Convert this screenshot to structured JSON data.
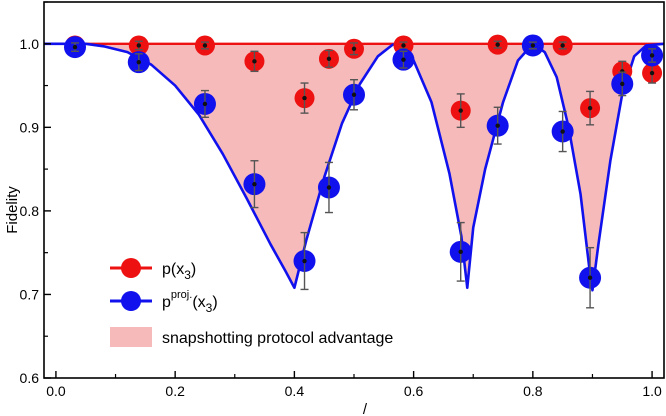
{
  "chart_data": {
    "type": "scatter",
    "ylabel": "Fidelity",
    "xlabel": "/",
    "xlim": [
      -0.02,
      1.02
    ],
    "ylim": [
      0.6,
      1.05
    ],
    "x_ticks": [
      "0.0",
      "0.2",
      "0.4",
      "0.6",
      "0.8",
      "1.0"
    ],
    "y_ticks": [
      "0.6",
      "0.7",
      "0.8",
      "0.9",
      "1.0"
    ],
    "grid": false,
    "legend_position": "bottom-left",
    "legend": {
      "red_base": "p(x",
      "red_sub": "3",
      "red_close": ")",
      "blue_base": "p",
      "blue_sup": "proj.",
      "blue_open": "(x",
      "blue_sub": "3",
      "blue_close": ")",
      "shade": "snapshotting protocol advantage"
    },
    "colors": {
      "red": "#ee1111",
      "blue": "#1111ee",
      "shade": "#f7baba",
      "error_bar": "#555555"
    },
    "series": [
      {
        "key": "red",
        "points": [
          {
            "x": 0.032,
            "y": 0.998,
            "err": 0.005
          },
          {
            "x": 0.139,
            "y": 0.998,
            "err": 0.005
          },
          {
            "x": 0.25,
            "y": 0.998,
            "err": 0.004
          },
          {
            "x": 0.333,
            "y": 0.979,
            "err": 0.012
          },
          {
            "x": 0.417,
            "y": 0.935,
            "err": 0.018
          },
          {
            "x": 0.458,
            "y": 0.982,
            "err": 0.01
          },
          {
            "x": 0.5,
            "y": 0.994,
            "err": 0.007
          },
          {
            "x": 0.583,
            "y": 0.998,
            "err": 0.004
          },
          {
            "x": 0.679,
            "y": 0.92,
            "err": 0.02
          },
          {
            "x": 0.741,
            "y": 0.999,
            "err": 0.004
          },
          {
            "x": 0.8,
            "y": 0.998,
            "err": 0.004
          },
          {
            "x": 0.85,
            "y": 0.998,
            "err": 0.004
          },
          {
            "x": 0.896,
            "y": 0.923,
            "err": 0.02
          },
          {
            "x": 0.95,
            "y": 0.967,
            "err": 0.012
          },
          {
            "x": 1.0,
            "y": 0.965,
            "err": 0.012
          }
        ]
      },
      {
        "key": "blue",
        "points": [
          {
            "x": 0.032,
            "y": 0.996,
            "err": 0.005
          },
          {
            "x": 0.139,
            "y": 0.978,
            "err": 0.01
          },
          {
            "x": 0.25,
            "y": 0.928,
            "err": 0.016
          },
          {
            "x": 0.333,
            "y": 0.832,
            "err": 0.028
          },
          {
            "x": 0.417,
            "y": 0.74,
            "err": 0.034
          },
          {
            "x": 0.458,
            "y": 0.828,
            "err": 0.03
          },
          {
            "x": 0.5,
            "y": 0.939,
            "err": 0.018
          },
          {
            "x": 0.583,
            "y": 0.981,
            "err": 0.01
          },
          {
            "x": 0.679,
            "y": 0.751,
            "err": 0.035
          },
          {
            "x": 0.741,
            "y": 0.902,
            "err": 0.022
          },
          {
            "x": 0.8,
            "y": 0.998,
            "err": 0.004
          },
          {
            "x": 0.85,
            "y": 0.895,
            "err": 0.024
          },
          {
            "x": 0.896,
            "y": 0.72,
            "err": 0.036
          },
          {
            "x": 0.95,
            "y": 0.952,
            "err": 0.014
          },
          {
            "x": 1.0,
            "y": 0.986,
            "err": 0.008
          }
        ]
      }
    ],
    "red_curve": [
      [
        -0.02,
        1.0
      ],
      [
        1.02,
        1.0
      ]
    ],
    "blue_curve": [
      [
        -0.02,
        1.0
      ],
      [
        0.05,
        1.0
      ],
      [
        0.08,
        0.997
      ],
      [
        0.12,
        0.99
      ],
      [
        0.16,
        0.975
      ],
      [
        0.2,
        0.95
      ],
      [
        0.24,
        0.915
      ],
      [
        0.28,
        0.868
      ],
      [
        0.32,
        0.815
      ],
      [
        0.36,
        0.76
      ],
      [
        0.385,
        0.728
      ],
      [
        0.4,
        0.708
      ],
      [
        0.42,
        0.765
      ],
      [
        0.45,
        0.84
      ],
      [
        0.48,
        0.905
      ],
      [
        0.51,
        0.952
      ],
      [
        0.54,
        0.985
      ],
      [
        0.565,
        0.999
      ],
      [
        0.58,
        1.0
      ],
      [
        0.6,
        0.98
      ],
      [
        0.63,
        0.93
      ],
      [
        0.66,
        0.845
      ],
      [
        0.68,
        0.77
      ],
      [
        0.69,
        0.708
      ],
      [
        0.7,
        0.78
      ],
      [
        0.72,
        0.85
      ],
      [
        0.75,
        0.93
      ],
      [
        0.775,
        0.98
      ],
      [
        0.8,
        1.0
      ],
      [
        0.82,
        0.99
      ],
      [
        0.84,
        0.96
      ],
      [
        0.86,
        0.9
      ],
      [
        0.88,
        0.82
      ],
      [
        0.895,
        0.73
      ],
      [
        0.9,
        0.705
      ],
      [
        0.91,
        0.76
      ],
      [
        0.93,
        0.86
      ],
      [
        0.95,
        0.94
      ],
      [
        0.97,
        0.985
      ],
      [
        0.99,
        0.998
      ],
      [
        1.02,
        1.0
      ]
    ]
  }
}
